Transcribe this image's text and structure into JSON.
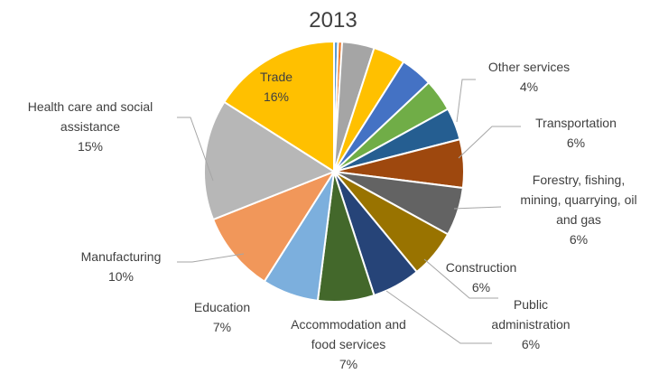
{
  "chart_data": {
    "type": "pie",
    "title": "2013",
    "slices": [
      {
        "value": 0.5,
        "color": "#5b9bd5"
      },
      {
        "value": 0.5,
        "color": "#ed7d31"
      },
      {
        "value": 4,
        "color": "#a5a5a5"
      },
      {
        "value": 4,
        "color": "#ffc000"
      },
      {
        "value": 4,
        "color": "#4472c4"
      },
      {
        "value": 4,
        "color": "#70ad47",
        "lines": [
          "Other services",
          "4%"
        ]
      },
      {
        "value": 4,
        "color": "#255e91"
      },
      {
        "value": 6,
        "color": "#9e480e",
        "lines": [
          "Transportation",
          "6%"
        ]
      },
      {
        "value": 6,
        "color": "#636363",
        "lines": [
          "Forestry, fishing,",
          "mining, quarrying, oil",
          "and gas",
          "6%"
        ]
      },
      {
        "value": 6,
        "color": "#997300",
        "lines": [
          "Construction",
          "6%"
        ]
      },
      {
        "value": 6,
        "color": "#264478",
        "lines": [
          "Public",
          "administration",
          "6%"
        ]
      },
      {
        "value": 7,
        "color": "#43682b",
        "lines": [
          "Accommodation and",
          "food services",
          "7%"
        ]
      },
      {
        "value": 7,
        "color": "#7cafdd",
        "lines": [
          "Education",
          "7%"
        ]
      },
      {
        "value": 10,
        "color": "#f1975a",
        "lines": [
          "Manufacturing",
          "10%"
        ]
      },
      {
        "value": 15,
        "color": "#b7b7b7",
        "lines": [
          "Health care and social",
          "assistance",
          "15%"
        ]
      },
      {
        "value": 16,
        "color": "#ffc000",
        "lines": [
          "Trade",
          "16%"
        ]
      }
    ]
  }
}
